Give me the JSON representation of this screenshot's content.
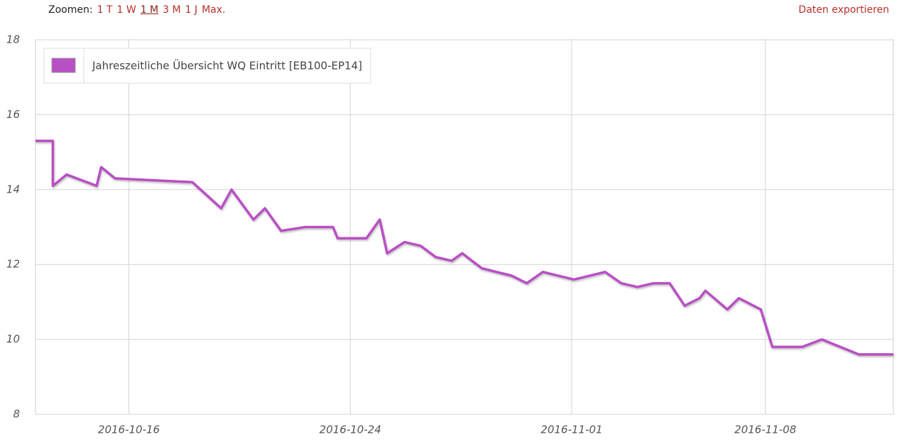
{
  "toolbar": {
    "zoom_label": "Zoomen:",
    "zoom_options": [
      "1 T",
      "1 W",
      "1 M",
      "3 M",
      "1 J",
      "Max."
    ],
    "selected_zoom_index": 2,
    "export": "Daten exportieren"
  },
  "chart_data": {
    "type": "line",
    "legend": "top-left",
    "grid": true,
    "xlim": [
      "2016-10-12 15:00",
      "2016-11-12 15:00"
    ],
    "xticks": [
      "2016-10-16",
      "2016-10-24",
      "2016-11-01",
      "2016-11-08"
    ],
    "ylim": [
      8,
      18
    ],
    "yticks": [
      8,
      10,
      12,
      14,
      16,
      18
    ],
    "series": [
      {
        "name": "Jahreszeitliche Übersicht WQ Eintritt [EB100-EP14]",
        "color": "#b94fc4",
        "x": [
          "2016-10-12 15:00",
          "2016-10-13 06:00",
          "2016-10-13 06:00",
          "2016-10-13 18:00",
          "2016-10-14 20:00",
          "2016-10-15 00:00",
          "2016-10-15 12:00",
          "2016-10-18 07:00",
          "2016-10-19 08:00",
          "2016-10-19 17:00",
          "2016-10-20 12:00",
          "2016-10-20 22:00",
          "2016-10-21 12:00",
          "2016-10-22 09:00",
          "2016-10-23 09:00",
          "2016-10-23 13:00",
          "2016-10-24 14:00",
          "2016-10-25 01:30",
          "2016-10-25 08:00",
          "2016-10-25 23:00",
          "2016-10-26 13:00",
          "2016-10-27 02:00",
          "2016-10-27 16:00",
          "2016-10-28 01:00",
          "2016-10-28 18:00",
          "2016-10-29 20:00",
          "2016-10-30 09:00",
          "2016-10-30 23:00",
          "2016-11-01 02:00",
          "2016-11-02 05:00",
          "2016-11-02 19:00",
          "2016-11-03 09:00",
          "2016-11-03 23:00",
          "2016-11-04 13:00",
          "2016-11-05 02:00",
          "2016-11-05 15:00",
          "2016-11-05 20:00",
          "2016-11-06 15:00",
          "2016-11-07 01:00",
          "2016-11-07 20:00",
          "2016-11-08 06:00",
          "2016-11-09 08:00",
          "2016-11-10 01:00",
          "2016-11-11 09:00",
          "2016-11-12 15:00"
        ],
        "values": [
          15.3,
          15.3,
          14.1,
          14.4,
          14.1,
          14.6,
          14.3,
          14.2,
          13.5,
          14.0,
          13.2,
          13.5,
          12.9,
          13.0,
          13.0,
          12.7,
          12.7,
          13.2,
          12.3,
          12.6,
          12.5,
          12.2,
          12.1,
          12.3,
          11.9,
          11.7,
          11.5,
          11.8,
          11.6,
          11.8,
          11.5,
          11.4,
          11.5,
          11.5,
          10.9,
          11.1,
          11.3,
          10.8,
          11.1,
          10.8,
          9.8,
          9.8,
          10.0,
          9.6,
          9.6
        ]
      }
    ]
  }
}
